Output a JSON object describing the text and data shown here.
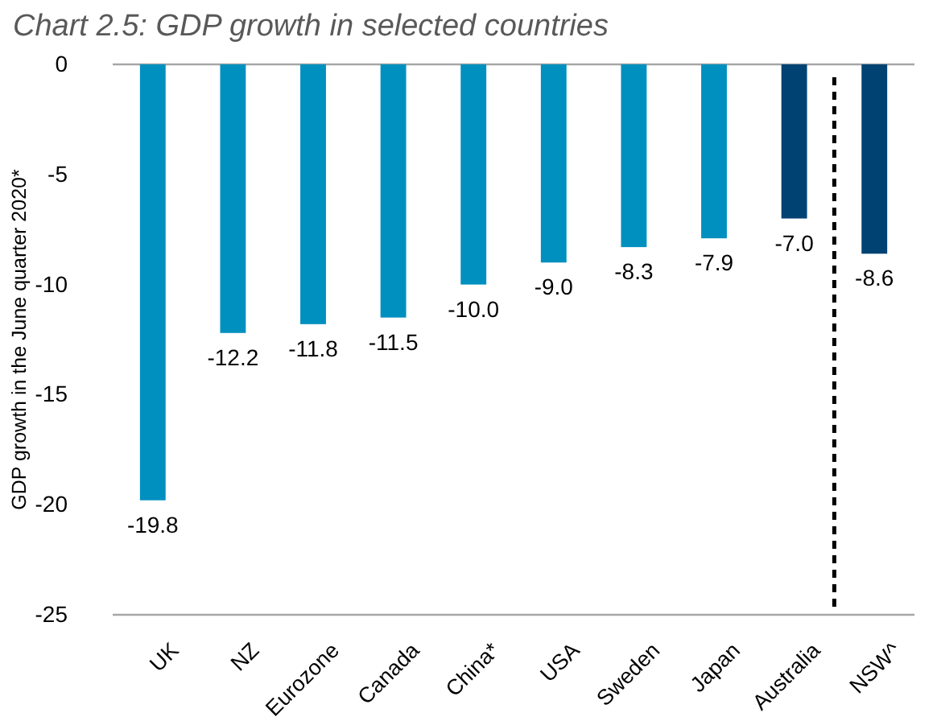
{
  "chart_data": {
    "type": "bar",
    "title": "Chart 2.5: GDP growth in selected countries",
    "ylabel": "GDP growth in the June quarter 2020*",
    "categories": [
      "UK",
      "NZ",
      "Eurozone",
      "Canada",
      "China*",
      "USA",
      "Sweden",
      "Japan",
      "Australia",
      "NSW^"
    ],
    "values": [
      -19.8,
      -12.2,
      -11.8,
      -11.5,
      -10.0,
      -9.0,
      -8.3,
      -7.9,
      -7.0,
      -8.6
    ],
    "colors": [
      "#0090c0",
      "#0090c0",
      "#0090c0",
      "#0090c0",
      "#0090c0",
      "#0090c0",
      "#0090c0",
      "#0090c0",
      "#004272",
      "#004272"
    ],
    "value_labels": [
      "-19.8",
      "-12.2",
      "-11.8",
      "-11.5",
      "-10.0",
      "-9.0",
      "-8.3",
      "-7.9",
      "-7.0",
      "-8.6"
    ],
    "ylim": [
      -25,
      0
    ],
    "yticks": [
      0,
      -5,
      -10,
      -15,
      -20,
      -25
    ]
  }
}
